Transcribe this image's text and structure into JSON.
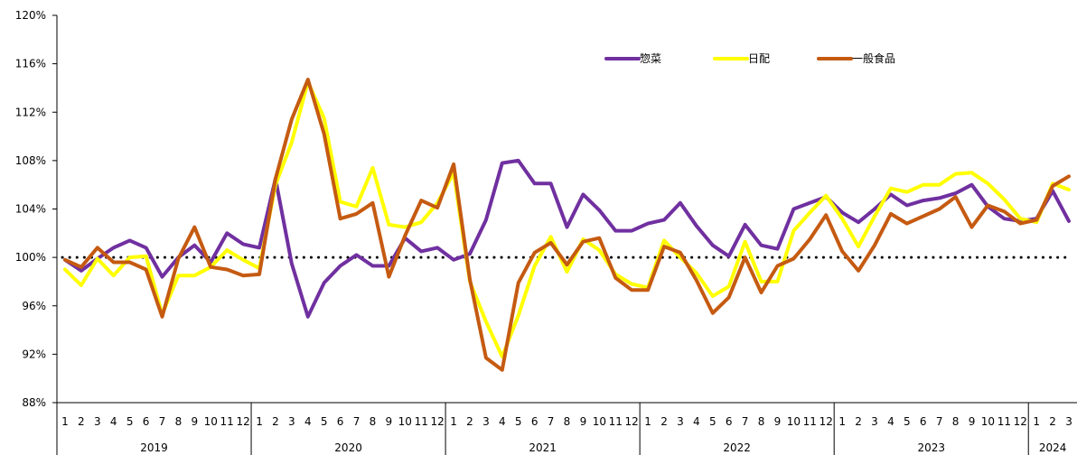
{
  "chart_data": {
    "type": "line",
    "title": "",
    "xlabel": "",
    "ylabel": "",
    "ylim": [
      88,
      120
    ],
    "yticks": [
      88,
      92,
      96,
      100,
      104,
      108,
      112,
      116,
      120
    ],
    "ytick_labels": [
      "88%",
      "92%",
      "96%",
      "100%",
      "104%",
      "108%",
      "112%",
      "116%",
      "120%"
    ],
    "reference_line": 100,
    "legend_position": "top-right",
    "years": [
      {
        "label": "2019",
        "months": 12
      },
      {
        "label": "2020",
        "months": 12
      },
      {
        "label": "2021",
        "months": 12
      },
      {
        "label": "2022",
        "months": 12
      },
      {
        "label": "2023",
        "months": 12
      },
      {
        "label": "2024",
        "months": 3
      }
    ],
    "month_labels": [
      "1",
      "2",
      "3",
      "4",
      "5",
      "6",
      "7",
      "8",
      "9",
      "10",
      "11",
      "12",
      "1",
      "2",
      "3",
      "4",
      "5",
      "6",
      "7",
      "8",
      "9",
      "10",
      "11",
      "12",
      "1",
      "2",
      "3",
      "4",
      "5",
      "6",
      "7",
      "8",
      "9",
      "10",
      "11",
      "12",
      "1",
      "2",
      "3",
      "4",
      "5",
      "6",
      "7",
      "8",
      "9",
      "10",
      "11",
      "12",
      "1",
      "2",
      "3",
      "4",
      "5",
      "6",
      "7",
      "8",
      "9",
      "10",
      "11",
      "12",
      "1",
      "2",
      "3"
    ],
    "series": [
      {
        "name": "惣菜",
        "color": "#7030A0",
        "values": [
          99.8,
          98.9,
          99.9,
          100.8,
          101.4,
          100.8,
          98.4,
          100.0,
          101.0,
          99.6,
          102.0,
          101.1,
          100.8,
          106.5,
          99.5,
          95.1,
          97.9,
          99.3,
          100.2,
          99.3,
          99.3,
          101.6,
          100.5,
          100.8,
          99.8,
          100.3,
          103.1,
          107.8,
          108.0,
          106.1,
          106.1,
          102.5,
          105.2,
          103.9,
          102.2,
          102.2,
          102.8,
          103.1,
          104.5,
          102.6,
          101.0,
          100.1,
          102.7,
          101.0,
          100.7,
          104.0,
          104.5,
          105.0,
          103.7,
          102.9,
          104.0,
          105.2,
          104.3,
          104.7,
          104.9,
          105.3,
          106.0,
          104.2,
          103.2,
          103.0,
          103.2,
          105.5,
          103.0
        ]
      },
      {
        "name": "日配",
        "color": "#FFFF00",
        "values": [
          99.0,
          97.7,
          99.9,
          98.5,
          100.0,
          100.1,
          95.3,
          98.5,
          98.5,
          99.2,
          100.6,
          99.8,
          99.1,
          106.0,
          109.5,
          114.5,
          111.5,
          104.6,
          104.2,
          107.4,
          102.7,
          102.5,
          102.9,
          104.5,
          107.0,
          98.0,
          94.7,
          91.8,
          95.2,
          99.3,
          101.7,
          98.8,
          101.5,
          100.6,
          98.6,
          97.8,
          97.5,
          101.4,
          100.0,
          98.7,
          96.8,
          97.6,
          101.3,
          98.0,
          98.0,
          102.2,
          103.7,
          105.1,
          103.2,
          100.9,
          103.4,
          105.7,
          105.4,
          106.0,
          106.0,
          106.9,
          107.0,
          106.1,
          104.8,
          103.2,
          102.9,
          106.1,
          105.6
        ]
      },
      {
        "name": "一般食品",
        "color": "#C55A11",
        "values": [
          99.8,
          99.2,
          100.8,
          99.6,
          99.6,
          99.0,
          95.1,
          99.9,
          102.5,
          99.2,
          99.0,
          98.5,
          98.6,
          106.5,
          111.4,
          114.7,
          110.2,
          103.2,
          103.6,
          104.5,
          98.4,
          101.8,
          104.7,
          104.1,
          107.7,
          98.2,
          91.7,
          90.7,
          97.9,
          100.4,
          101.2,
          99.4,
          101.3,
          101.6,
          98.3,
          97.3,
          97.3,
          100.9,
          100.4,
          98.1,
          95.4,
          96.7,
          100.0,
          97.1,
          99.3,
          99.9,
          101.5,
          103.5,
          100.5,
          98.9,
          101.0,
          103.6,
          102.8,
          103.4,
          104.0,
          105.0,
          102.5,
          104.3,
          103.8,
          102.8,
          103.1,
          105.9,
          106.7
        ]
      }
    ]
  }
}
